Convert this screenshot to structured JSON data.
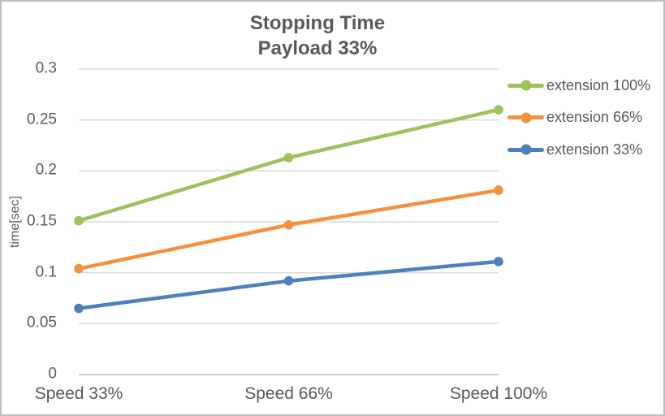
{
  "chart_data": {
    "type": "line",
    "title": "Stopping Time",
    "subtitle": "Payload 33%",
    "categories": [
      "Speed 33%",
      "Speed 66%",
      "Speed 100%"
    ],
    "series": [
      {
        "name": "extension 100%",
        "color": "#9CC25B",
        "values": [
          0.151,
          0.213,
          0.26
        ]
      },
      {
        "name": "extension 66%",
        "color": "#F5913E",
        "values": [
          0.104,
          0.147,
          0.181
        ]
      },
      {
        "name": "extension 33%",
        "color": "#4E80BE",
        "values": [
          0.065,
          0.092,
          0.111
        ]
      }
    ],
    "xlabel": "",
    "ylabel": "time[sec]",
    "ylim": [
      0,
      0.3
    ],
    "ytick_step": 0.05,
    "ytick_labels": [
      "0",
      "0.05",
      "0.1",
      "0.15",
      "0.2",
      "0.25",
      "0.3"
    ],
    "grid": true,
    "legend_position": "right",
    "marker": "circle"
  },
  "colors": {
    "text": "#595959",
    "gridline": "#D9D9D9",
    "axis_line": "#D0D0D0",
    "background": "#FFFFFF",
    "border": "#BDBDBD"
  }
}
